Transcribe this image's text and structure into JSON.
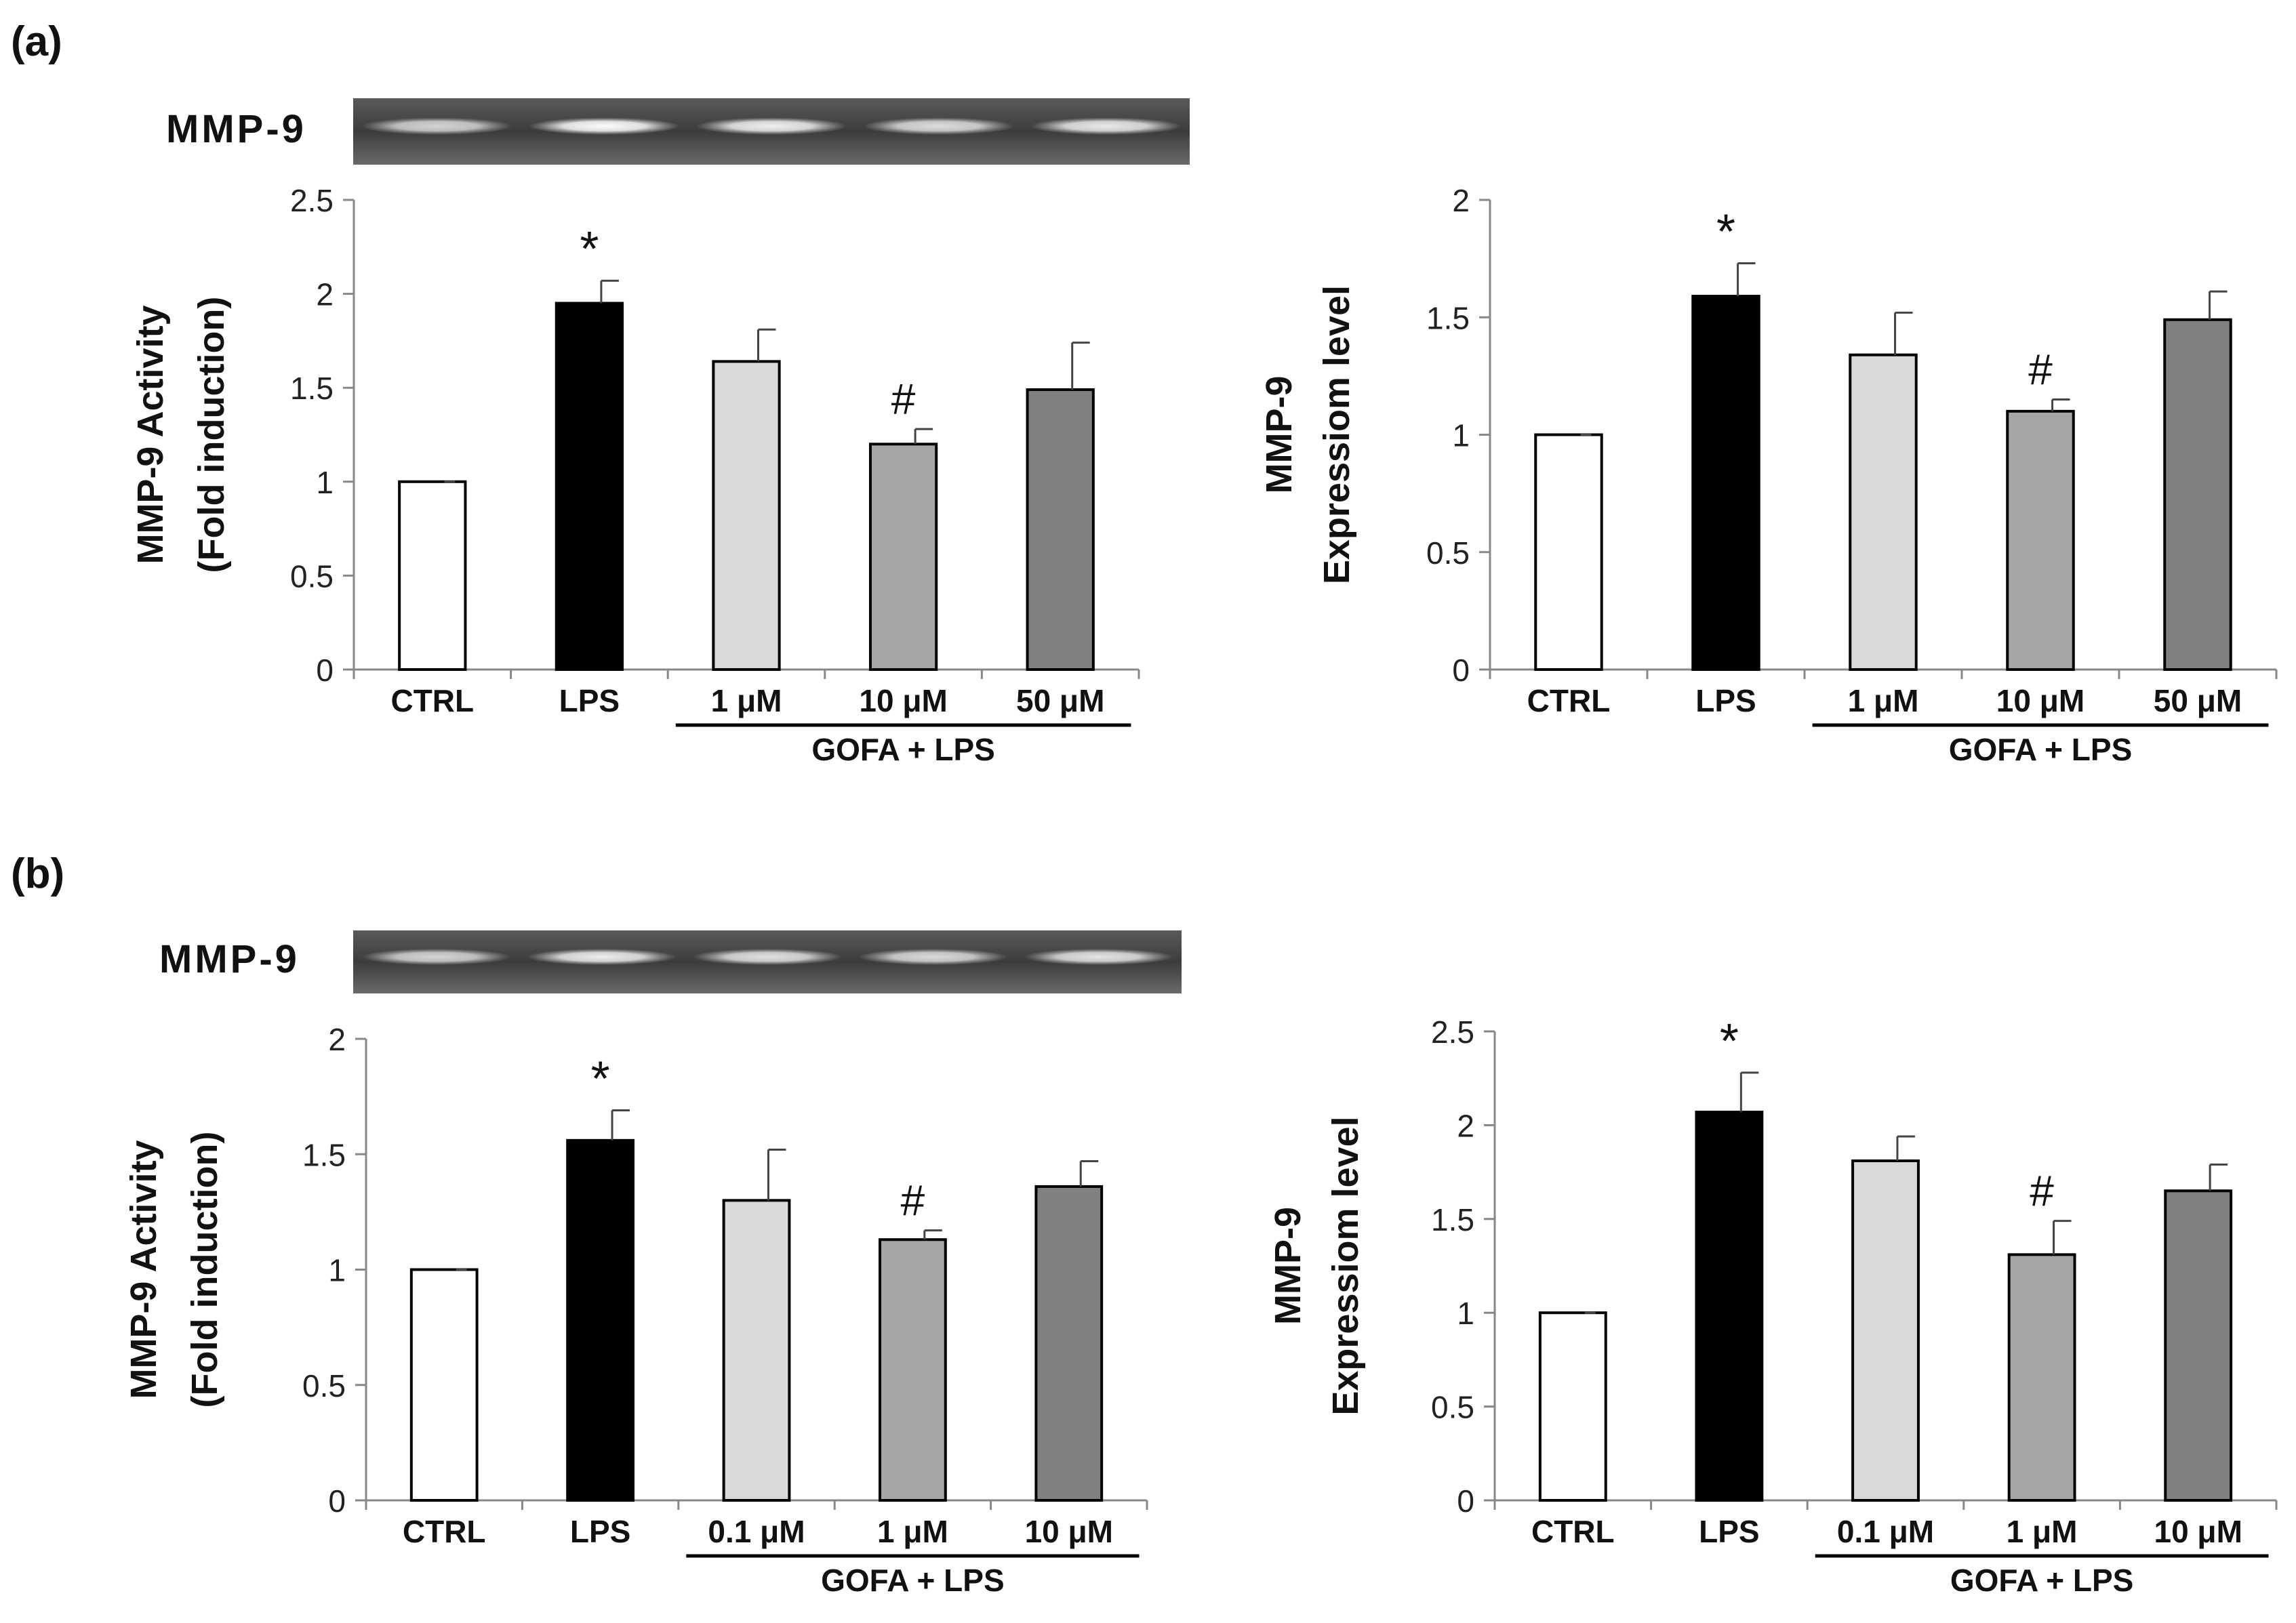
{
  "panels": [
    {
      "label": "(a)"
    },
    {
      "label": "(b)"
    }
  ],
  "chart_data": [
    {
      "type": "bar",
      "panel": "(a)",
      "gel_label": "MMP-9",
      "ylabel_line1": "MMP-9 Activity",
      "ylabel_line2": "(Fold induction)",
      "categories": [
        "CTRL",
        "LPS",
        "1 μM",
        "10 μM",
        "50 μM"
      ],
      "values": [
        1.0,
        1.95,
        1.64,
        1.2,
        1.49
      ],
      "errors": [
        0.0,
        0.12,
        0.17,
        0.08,
        0.25
      ],
      "significance": [
        "",
        "*",
        "",
        "#",
        ""
      ],
      "colors": [
        "#ffffff",
        "#000000",
        "#d9d9d9",
        "#a6a6a6",
        "#808080"
      ],
      "ylim": [
        0,
        2.5
      ],
      "yticks": [
        "0",
        "0.5",
        "1",
        "1.5",
        "2",
        "2.5"
      ],
      "group_label": "GOFA + LPS"
    },
    {
      "type": "bar",
      "panel": "(a)",
      "ylabel_line1": "MMP-9",
      "ylabel_line2": "Expressiom level",
      "categories": [
        "CTRL",
        "LPS",
        "1 μM",
        "10 μM",
        "50 μM"
      ],
      "values": [
        1.0,
        1.59,
        1.34,
        1.1,
        1.49
      ],
      "errors": [
        0.0,
        0.14,
        0.18,
        0.05,
        0.12
      ],
      "significance": [
        "",
        "*",
        "",
        "#",
        ""
      ],
      "colors": [
        "#ffffff",
        "#000000",
        "#d9d9d9",
        "#a6a6a6",
        "#808080"
      ],
      "ylim": [
        0,
        2
      ],
      "yticks": [
        "0",
        "0.5",
        "1",
        "1.5",
        "2"
      ],
      "group_label": "GOFA + LPS"
    },
    {
      "type": "bar",
      "panel": "(b)",
      "gel_label": "MMP-9",
      "ylabel_line1": "MMP-9 Activity",
      "ylabel_line2": "(Fold induction)",
      "categories": [
        "CTRL",
        "LPS",
        "0.1 μM",
        "1 μM",
        "10 μM"
      ],
      "values": [
        1.0,
        1.56,
        1.3,
        1.13,
        1.36
      ],
      "errors": [
        0.0,
        0.13,
        0.22,
        0.04,
        0.11
      ],
      "significance": [
        "",
        "*",
        "",
        "#",
        ""
      ],
      "colors": [
        "#ffffff",
        "#000000",
        "#d9d9d9",
        "#a6a6a6",
        "#808080"
      ],
      "ylim": [
        0,
        2
      ],
      "yticks": [
        "0",
        "0.5",
        "1",
        "1.5",
        "2"
      ],
      "group_label": "GOFA + LPS"
    },
    {
      "type": "bar",
      "panel": "(b)",
      "ylabel_line1": "MMP-9",
      "ylabel_line2": "Expressiom level",
      "categories": [
        "CTRL",
        "LPS",
        "0.1 μM",
        "1 μM",
        "10 μM"
      ],
      "values": [
        1.0,
        2.07,
        1.81,
        1.31,
        1.65
      ],
      "errors": [
        0.0,
        0.21,
        0.13,
        0.18,
        0.14
      ],
      "significance": [
        "",
        "*",
        "",
        "#",
        ""
      ],
      "colors": [
        "#ffffff",
        "#000000",
        "#d9d9d9",
        "#a6a6a6",
        "#808080"
      ],
      "ylim": [
        0,
        2.5
      ],
      "yticks": [
        "0",
        "0.5",
        "1",
        "1.5",
        "2",
        "2.5"
      ],
      "group_label": "GOFA + LPS"
    }
  ]
}
